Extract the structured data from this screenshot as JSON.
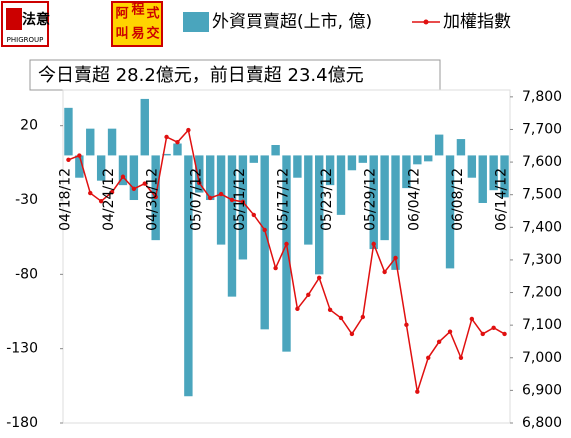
{
  "logo": {
    "name": "法意",
    "sub": "PHIGROUP",
    "chars": [
      "阿",
      "叫",
      "程",
      "式",
      "易",
      "交"
    ]
  },
  "chart_data": {
    "type": "bar_line",
    "subtitle": "今日賣超 28.2億元，前日賣超 23.4億元",
    "categories": [
      "04/18/12",
      null,
      null,
      null,
      "04/24/12",
      null,
      null,
      null,
      "04/30/12",
      null,
      null,
      null,
      "05/07/12",
      null,
      null,
      null,
      "05/11/12",
      null,
      null,
      null,
      "05/17/12",
      null,
      null,
      null,
      "05/23/12",
      null,
      null,
      null,
      "05/29/12",
      null,
      null,
      null,
      "06/04/12",
      null,
      null,
      null,
      "06/08/12",
      null,
      null,
      null,
      "06/14/12"
    ],
    "series": [
      {
        "name": "外資買賣超(上市, 億)",
        "type": "bar",
        "axis": "y",
        "color": "#4aa5bd",
        "values": [
          32,
          -15,
          18,
          -17,
          18,
          -20,
          -30,
          38,
          -57,
          1,
          8,
          -162,
          -25,
          -30,
          -60,
          -95,
          -70,
          -5,
          -117,
          7,
          -132,
          -15,
          -60,
          -80,
          -20,
          -40,
          -10,
          -5,
          -63,
          -57,
          -77,
          -22,
          -6,
          -4,
          14,
          -76,
          11,
          -15,
          -32,
          -23.4,
          -28.2
        ]
      },
      {
        "name": "加權指數",
        "type": "line",
        "axis": "y2",
        "color": "#e01010",
        "values": [
          7607,
          7620,
          7505,
          7480,
          7508,
          7555,
          7518,
          7534,
          7493,
          7677,
          7661,
          7698,
          7536,
          7490,
          7502,
          7484,
          7478,
          7438,
          7392,
          7275,
          7349,
          7150,
          7193,
          7245,
          7147,
          7122,
          7073,
          7125,
          7349,
          7263,
          7306,
          7101,
          6896,
          7000,
          7049,
          7080,
          7000,
          7119,
          7073,
          7092,
          7073
        ]
      }
    ],
    "ylim": [
      -180,
      44
    ],
    "yticks": [
      20,
      -30,
      -80,
      -130,
      -180
    ],
    "y2lim": [
      6800,
      7821
    ],
    "y2ticks": [
      {
        "value": 7800,
        "label": "7,800"
      },
      {
        "value": 7700,
        "label": "7,700"
      },
      {
        "value": 7600,
        "label": "7,600"
      },
      {
        "value": 7500,
        "label": "7,500"
      },
      {
        "value": 7400,
        "label": "7,400"
      },
      {
        "value": 7300,
        "label": "7,300"
      },
      {
        "value": 7200,
        "label": "7,200"
      },
      {
        "value": 7100,
        "label": "7,100"
      },
      {
        "value": 7000,
        "label": "7,000"
      },
      {
        "value": 6900,
        "label": "6,900"
      },
      {
        "value": 6800,
        "label": "6,800"
      }
    ]
  }
}
